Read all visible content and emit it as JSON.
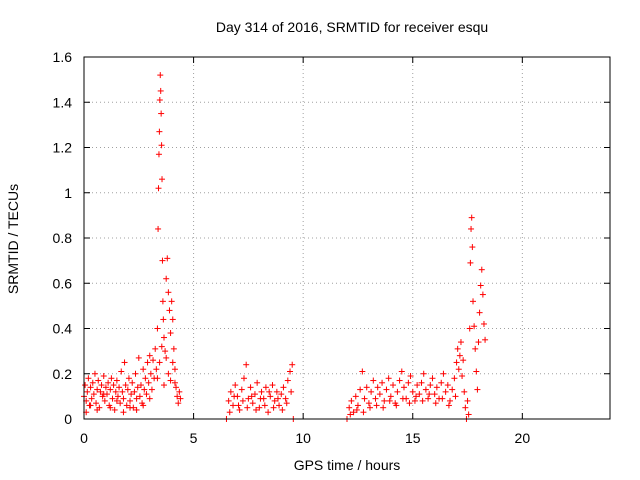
{
  "chart_data": {
    "type": "scatter",
    "title": "Day 314 of 2016, SRMTID for receiver esqu",
    "xlabel": "GPS time / hours",
    "ylabel": "SRMTID / TECUs",
    "xlim": [
      0,
      24
    ],
    "ylim": [
      0,
      1.6
    ],
    "xticks": [
      0,
      5,
      10,
      15,
      20
    ],
    "xtick_labels": [
      "0",
      "5",
      "10",
      "15",
      "20"
    ],
    "yticks": [
      0,
      0.2,
      0.4,
      0.6,
      0.8,
      1.0,
      1.2,
      1.4,
      1.6
    ],
    "ytick_labels": [
      "0",
      "0.2",
      "0.4",
      "0.6",
      "0.8",
      "1",
      "1.2",
      "1.4",
      "1.6"
    ],
    "grid": true,
    "marker": "+",
    "series": [
      {
        "name": "SRMTID",
        "color": "#ff0000",
        "points": [
          [
            0.0,
            0.1
          ],
          [
            0.05,
            0.15
          ],
          [
            0.1,
            0.08
          ],
          [
            0.15,
            0.12
          ],
          [
            0.2,
            0.18
          ],
          [
            0.25,
            0.06
          ],
          [
            0.3,
            0.14
          ],
          [
            0.35,
            0.09
          ],
          [
            0.4,
            0.16
          ],
          [
            0.45,
            0.11
          ],
          [
            0.5,
            0.2
          ],
          [
            0.55,
            0.07
          ],
          [
            0.6,
            0.13
          ],
          [
            0.65,
            0.17
          ],
          [
            0.7,
            0.05
          ],
          [
            0.75,
            0.12
          ],
          [
            0.8,
            0.15
          ],
          [
            0.85,
            0.1
          ],
          [
            0.9,
            0.19
          ],
          [
            0.95,
            0.08
          ],
          [
            1.0,
            0.14
          ],
          [
            1.05,
            0.11
          ],
          [
            1.1,
            0.16
          ],
          [
            1.15,
            0.06
          ],
          [
            1.2,
            0.13
          ],
          [
            1.25,
            0.18
          ],
          [
            1.3,
            0.09
          ],
          [
            1.35,
            0.15
          ],
          [
            1.4,
            0.04
          ],
          [
            1.45,
            0.12
          ],
          [
            1.5,
            0.17
          ],
          [
            1.55,
            0.1
          ],
          [
            1.6,
            0.14
          ],
          [
            1.65,
            0.07
          ],
          [
            1.7,
            0.21
          ],
          [
            1.75,
            0.12
          ],
          [
            1.8,
            0.09
          ],
          [
            1.85,
            0.25
          ],
          [
            1.9,
            0.15
          ],
          [
            1.95,
            0.06
          ],
          [
            2.0,
            0.13
          ],
          [
            2.05,
            0.18
          ],
          [
            2.1,
            0.08
          ],
          [
            2.15,
            0.11
          ],
          [
            2.2,
            0.16
          ],
          [
            2.25,
            0.05
          ],
          [
            2.3,
            0.12
          ],
          [
            2.35,
            0.2
          ],
          [
            2.4,
            0.09
          ],
          [
            2.45,
            0.14
          ],
          [
            2.5,
            0.27
          ],
          [
            2.55,
            0.1
          ],
          [
            2.6,
            0.15
          ],
          [
            2.65,
            0.07
          ],
          [
            2.7,
            0.22
          ],
          [
            2.75,
            0.13
          ],
          [
            2.8,
            0.18
          ],
          [
            2.85,
            0.11
          ],
          [
            2.9,
            0.25
          ],
          [
            2.95,
            0.16
          ],
          [
            3.0,
            0.28
          ],
          [
            3.05,
            0.2
          ],
          [
            3.1,
            0.13
          ],
          [
            3.15,
            0.26
          ],
          [
            3.2,
            0.18
          ],
          [
            3.25,
            0.31
          ],
          [
            3.3,
            0.22
          ],
          [
            3.35,
            0.4
          ],
          [
            3.38,
            0.84
          ],
          [
            3.4,
            1.02
          ],
          [
            3.42,
            1.17
          ],
          [
            3.44,
            1.27
          ],
          [
            3.46,
            1.41
          ],
          [
            3.48,
            1.52
          ],
          [
            3.5,
            1.45
          ],
          [
            3.52,
            1.35
          ],
          [
            3.54,
            1.21
          ],
          [
            3.56,
            1.06
          ],
          [
            3.58,
            0.7
          ],
          [
            3.6,
            0.52
          ],
          [
            3.62,
            0.44
          ],
          [
            3.65,
            0.36
          ],
          [
            3.7,
            0.3
          ],
          [
            3.75,
            0.62
          ],
          [
            3.8,
            0.71
          ],
          [
            3.85,
            0.56
          ],
          [
            3.9,
            0.48
          ],
          [
            3.95,
            0.38
          ],
          [
            4.0,
            0.52
          ],
          [
            4.05,
            0.44
          ],
          [
            4.1,
            0.31
          ],
          [
            4.15,
            0.22
          ],
          [
            4.2,
            0.14
          ],
          [
            4.25,
            0.1
          ],
          [
            4.3,
            0.07
          ],
          [
            4.35,
            0.12
          ],
          [
            4.4,
            0.09
          ],
          [
            3.35,
            0.18
          ],
          [
            3.45,
            0.25
          ],
          [
            3.55,
            0.32
          ],
          [
            3.65,
            0.15
          ],
          [
            3.75,
            0.27
          ],
          [
            3.85,
            0.2
          ],
          [
            3.95,
            0.17
          ],
          [
            4.05,
            0.25
          ],
          [
            4.15,
            0.16
          ],
          [
            0.1,
            0.03
          ],
          [
            0.3,
            0.06
          ],
          [
            0.6,
            0.04
          ],
          [
            0.9,
            0.11
          ],
          [
            1.2,
            0.05
          ],
          [
            1.5,
            0.08
          ],
          [
            1.8,
            0.03
          ],
          [
            2.1,
            0.05
          ],
          [
            2.4,
            0.04
          ],
          [
            2.7,
            0.06
          ],
          [
            3.0,
            0.09
          ],
          [
            6.5,
            0.0
          ],
          [
            6.6,
            0.08
          ],
          [
            6.7,
            0.12
          ],
          [
            6.8,
            0.06
          ],
          [
            6.9,
            0.15
          ],
          [
            7.0,
            0.1
          ],
          [
            7.1,
            0.04
          ],
          [
            7.2,
            0.13
          ],
          [
            7.3,
            0.18
          ],
          [
            7.4,
            0.24
          ],
          [
            7.5,
            0.09
          ],
          [
            7.6,
            0.14
          ],
          [
            7.7,
            0.07
          ],
          [
            7.8,
            0.11
          ],
          [
            7.9,
            0.16
          ],
          [
            8.0,
            0.05
          ],
          [
            8.1,
            0.12
          ],
          [
            8.2,
            0.09
          ],
          [
            8.3,
            0.14
          ],
          [
            8.4,
            0.03
          ],
          [
            8.5,
            0.1
          ],
          [
            8.6,
            0.15
          ],
          [
            8.7,
            0.08
          ],
          [
            8.8,
            0.12
          ],
          [
            8.9,
            0.06
          ],
          [
            9.0,
            0.11
          ],
          [
            9.1,
            0.14
          ],
          [
            9.2,
            0.09
          ],
          [
            9.3,
            0.17
          ],
          [
            9.4,
            0.21
          ],
          [
            9.5,
            0.24
          ],
          [
            9.55,
            0.0
          ],
          [
            6.65,
            0.03
          ],
          [
            6.85,
            0.1
          ],
          [
            7.05,
            0.06
          ],
          [
            7.25,
            0.08
          ],
          [
            7.45,
            0.05
          ],
          [
            7.65,
            0.1
          ],
          [
            7.85,
            0.04
          ],
          [
            8.05,
            0.09
          ],
          [
            8.25,
            0.06
          ],
          [
            8.45,
            0.12
          ],
          [
            8.65,
            0.05
          ],
          [
            8.85,
            0.09
          ],
          [
            9.05,
            0.04
          ],
          [
            9.25,
            0.07
          ],
          [
            9.45,
            0.12
          ],
          [
            12.0,
            0.0
          ],
          [
            12.1,
            0.05
          ],
          [
            12.2,
            0.08
          ],
          [
            12.3,
            0.03
          ],
          [
            12.4,
            0.1
          ],
          [
            12.5,
            0.06
          ],
          [
            12.6,
            0.13
          ],
          [
            12.7,
            0.21
          ],
          [
            12.8,
            0.09
          ],
          [
            12.9,
            0.14
          ],
          [
            13.0,
            0.07
          ],
          [
            13.1,
            0.12
          ],
          [
            13.2,
            0.17
          ],
          [
            13.3,
            0.09
          ],
          [
            13.4,
            0.14
          ],
          [
            13.5,
            0.11
          ],
          [
            13.6,
            0.16
          ],
          [
            13.7,
            0.08
          ],
          [
            13.8,
            0.13
          ],
          [
            13.9,
            0.18
          ],
          [
            14.0,
            0.1
          ],
          [
            14.1,
            0.15
          ],
          [
            14.2,
            0.07
          ],
          [
            14.3,
            0.12
          ],
          [
            14.4,
            0.17
          ],
          [
            14.5,
            0.21
          ],
          [
            14.6,
            0.14
          ],
          [
            14.7,
            0.09
          ],
          [
            14.8,
            0.16
          ],
          [
            14.9,
            0.19
          ],
          [
            15.0,
            0.12
          ],
          [
            15.1,
            0.08
          ],
          [
            15.2,
            0.15
          ],
          [
            15.3,
            0.11
          ],
          [
            15.4,
            0.16
          ],
          [
            15.5,
            0.2
          ],
          [
            15.6,
            0.13
          ],
          [
            15.7,
            0.09
          ],
          [
            15.8,
            0.15
          ],
          [
            15.9,
            0.18
          ],
          [
            16.0,
            0.11
          ],
          [
            16.1,
            0.14
          ],
          [
            16.2,
            0.09
          ],
          [
            16.3,
            0.16
          ],
          [
            16.4,
            0.2
          ],
          [
            16.5,
            0.12
          ],
          [
            16.6,
            0.15
          ],
          [
            16.7,
            0.08
          ],
          [
            16.8,
            0.13
          ],
          [
            16.9,
            0.18
          ],
          [
            17.0,
            0.25
          ],
          [
            17.05,
            0.31
          ],
          [
            17.1,
            0.22
          ],
          [
            17.15,
            0.28
          ],
          [
            17.2,
            0.34
          ],
          [
            17.25,
            0.19
          ],
          [
            17.3,
            0.26
          ],
          [
            17.35,
            0.12
          ],
          [
            17.4,
            0.05
          ],
          [
            17.45,
            0.0
          ],
          [
            17.5,
            0.08
          ],
          [
            17.55,
            0.02
          ],
          [
            17.6,
            0.4
          ],
          [
            17.63,
            0.69
          ],
          [
            17.66,
            0.84
          ],
          [
            17.69,
            0.89
          ],
          [
            17.72,
            0.76
          ],
          [
            17.75,
            0.52
          ],
          [
            17.8,
            0.41
          ],
          [
            17.85,
            0.31
          ],
          [
            17.9,
            0.21
          ],
          [
            17.95,
            0.13
          ],
          [
            18.0,
            0.34
          ],
          [
            18.05,
            0.47
          ],
          [
            18.1,
            0.59
          ],
          [
            18.15,
            0.66
          ],
          [
            18.2,
            0.55
          ],
          [
            18.25,
            0.42
          ],
          [
            18.3,
            0.35
          ],
          [
            12.15,
            0.02
          ],
          [
            12.45,
            0.04
          ],
          [
            12.75,
            0.03
          ],
          [
            13.05,
            0.05
          ],
          [
            13.35,
            0.06
          ],
          [
            13.65,
            0.05
          ],
          [
            13.95,
            0.08
          ],
          [
            14.25,
            0.06
          ],
          [
            14.55,
            0.09
          ],
          [
            14.85,
            0.07
          ],
          [
            15.15,
            0.1
          ],
          [
            15.45,
            0.08
          ],
          [
            15.75,
            0.11
          ],
          [
            16.05,
            0.07
          ],
          [
            16.35,
            0.09
          ],
          [
            16.65,
            0.06
          ],
          [
            16.95,
            0.1
          ]
        ]
      }
    ]
  }
}
